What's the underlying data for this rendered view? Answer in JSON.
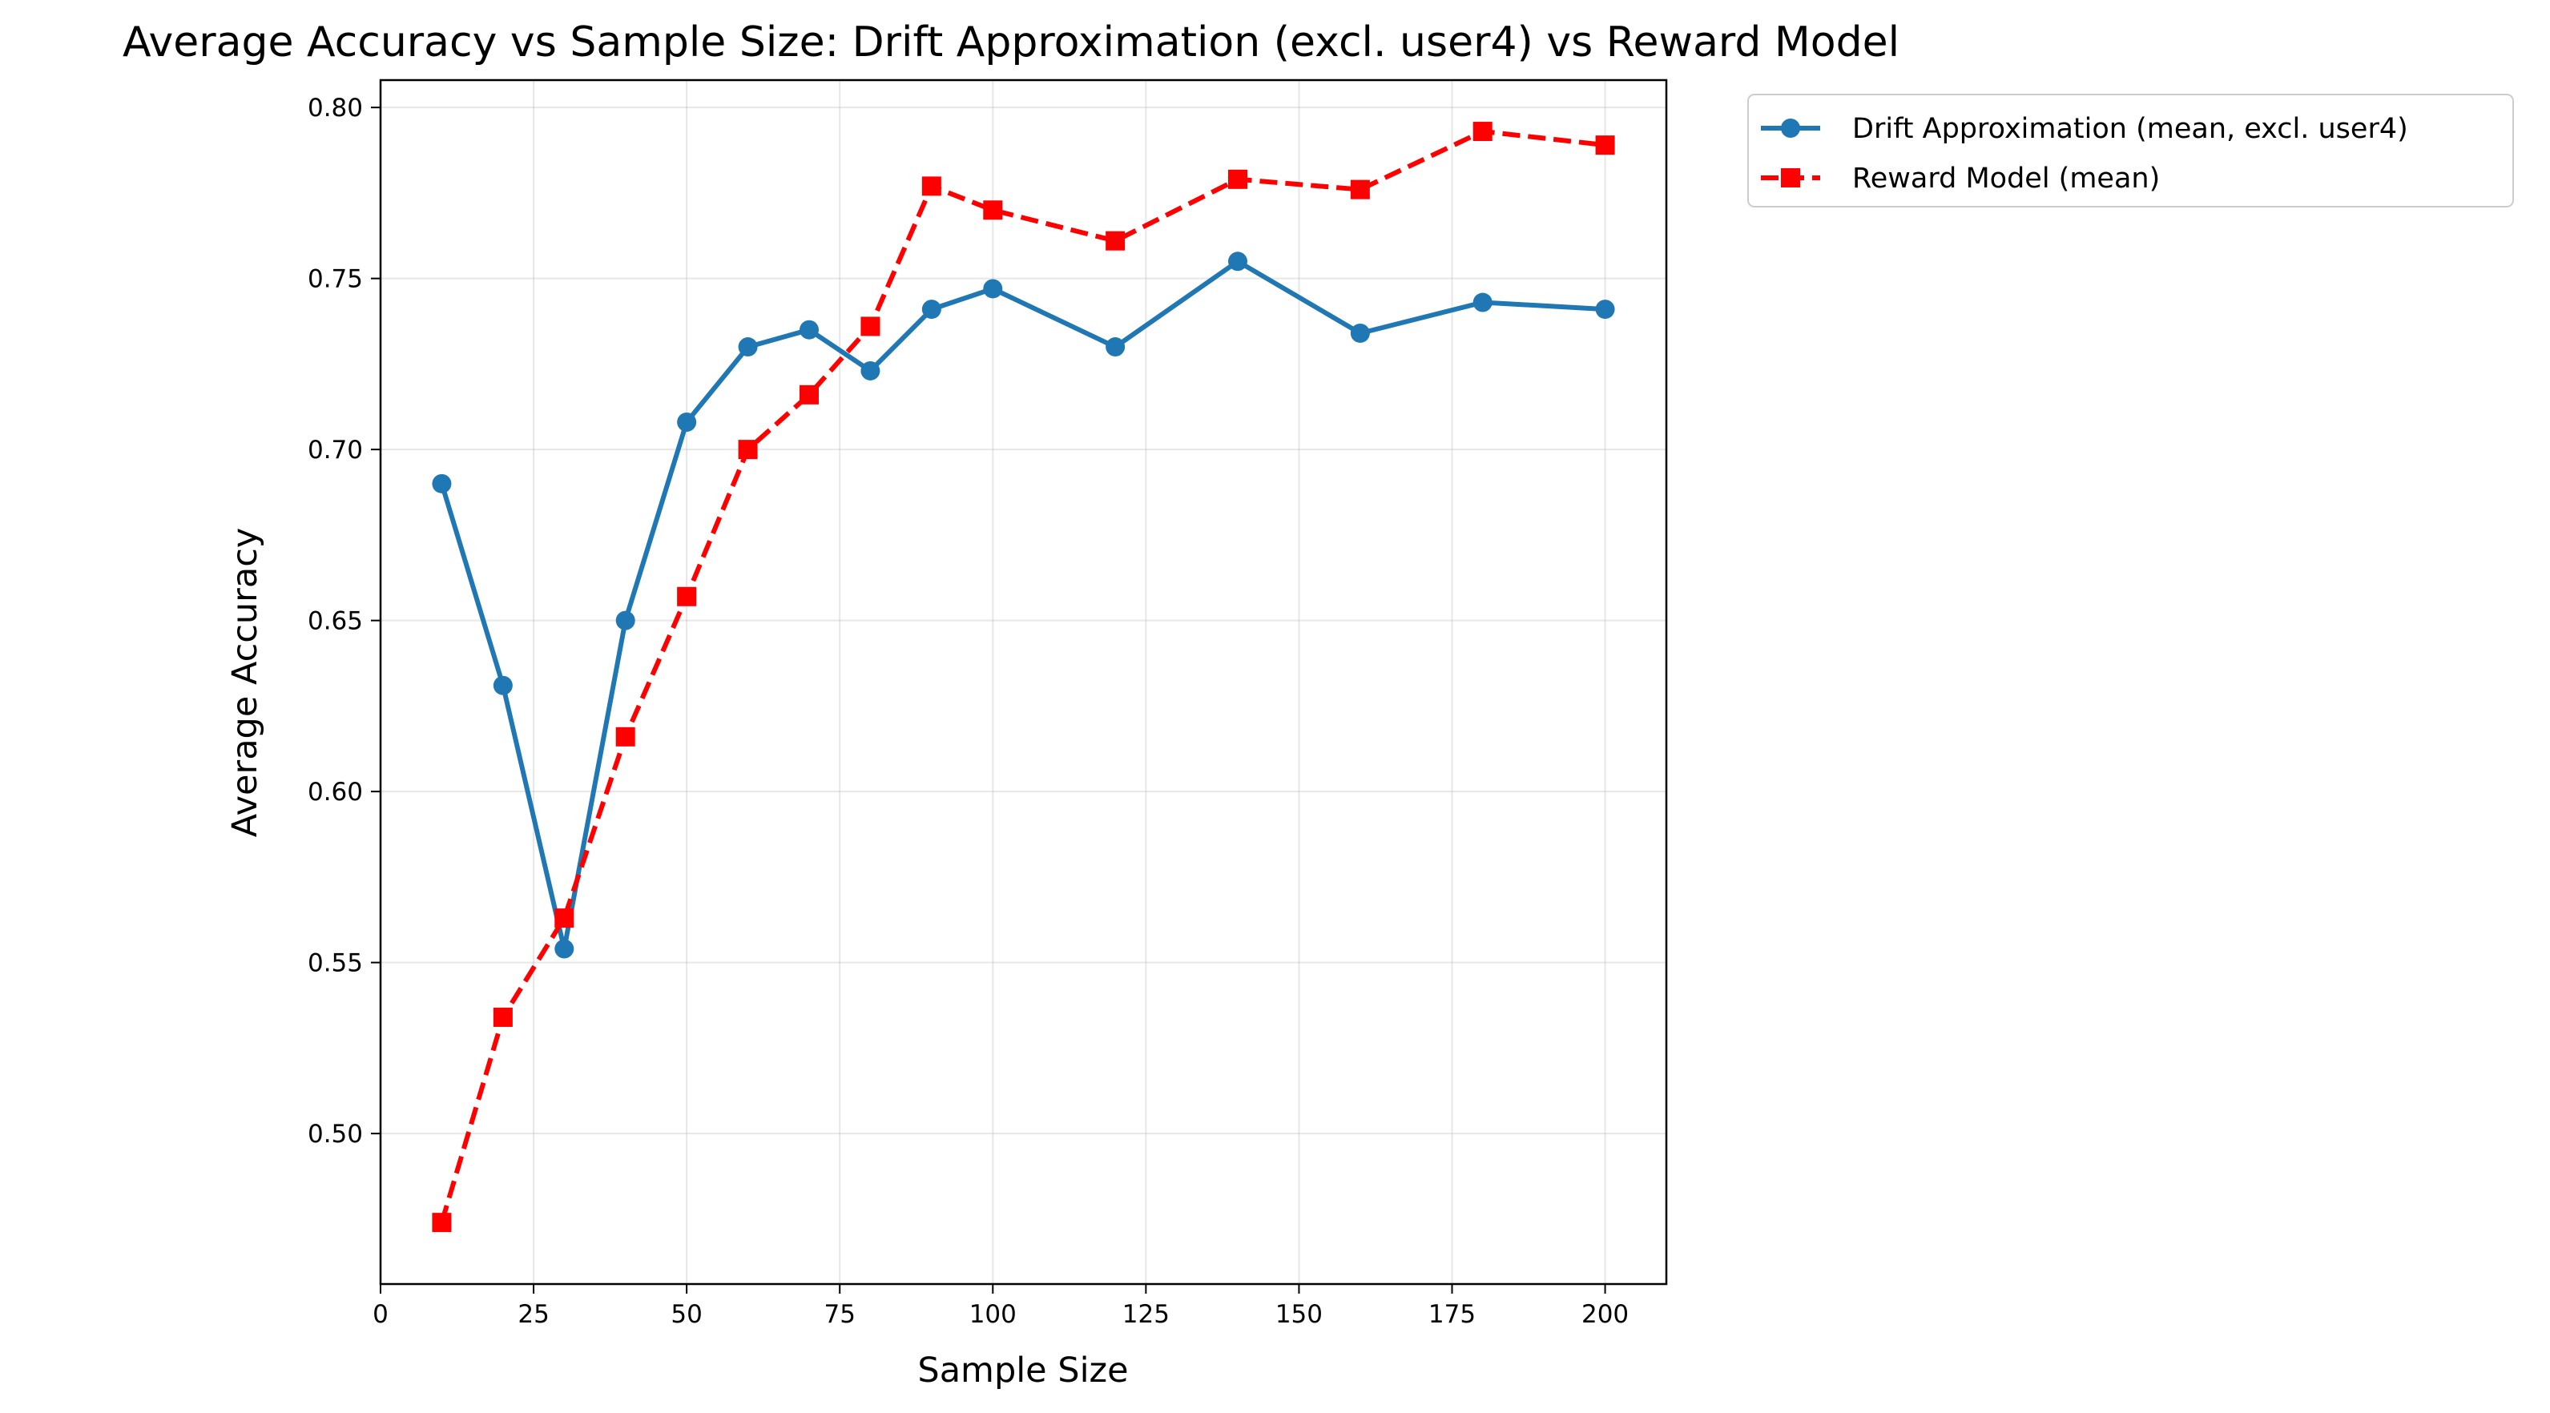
{
  "chart_data": {
    "type": "line",
    "title": "Average Accuracy vs Sample Size: Drift Approximation (excl. user4) vs Reward Model",
    "xlabel": "Sample Size",
    "ylabel": "Average Accuracy",
    "xlim": [
      0,
      210
    ],
    "ylim": [
      0.456,
      0.808
    ],
    "xticks": [
      "0",
      "25",
      "50",
      "75",
      "100",
      "125",
      "150",
      "175",
      "200"
    ],
    "yticks": [
      "0.50",
      "0.55",
      "0.60",
      "0.65",
      "0.70",
      "0.75",
      "0.80"
    ],
    "grid": true,
    "legend_position": "outside-upper-right",
    "series": [
      {
        "name": "Drift Approximation (mean, excl. user4)",
        "color": "#1f77b4",
        "line_style": "solid",
        "marker": "circle",
        "x": [
          10,
          20,
          30,
          40,
          50,
          60,
          70,
          80,
          90,
          100,
          120,
          140,
          160,
          180,
          200
        ],
        "y": [
          0.69,
          0.631,
          0.554,
          0.65,
          0.708,
          0.73,
          0.735,
          0.723,
          0.741,
          0.747,
          0.73,
          0.755,
          0.734,
          0.743,
          0.741
        ]
      },
      {
        "name": "Reward Model (mean)",
        "color": "#ff0000",
        "line_style": "dashed",
        "marker": "square",
        "x": [
          10,
          20,
          30,
          40,
          50,
          60,
          70,
          80,
          90,
          100,
          120,
          140,
          160,
          180,
          200
        ],
        "y": [
          0.474,
          0.534,
          0.563,
          0.616,
          0.657,
          0.7,
          0.716,
          0.736,
          0.777,
          0.77,
          0.761,
          0.779,
          0.776,
          0.793,
          0.789
        ]
      }
    ]
  }
}
